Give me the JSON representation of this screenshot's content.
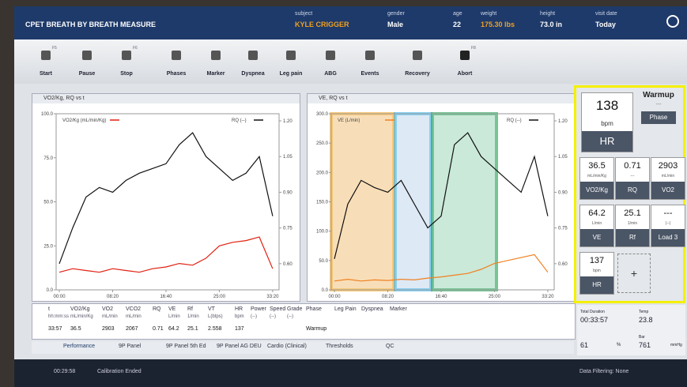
{
  "header": {
    "title": "CPET BREATH BY BREATH MEASURE",
    "subject_label": "subject",
    "subject": "KYLE CRIGGER",
    "gender_label": "gender",
    "gender": "Male",
    "age_label": "age",
    "age": 22,
    "weight_label": "weight",
    "weight": "175.30 lbs",
    "height_label": "height",
    "height": "73.0 in",
    "visit_label": "visit date",
    "visit": "Today"
  },
  "toolbar": [
    {
      "label": "Start",
      "key": "F5"
    },
    {
      "label": "Pause"
    },
    {
      "label": "Stop",
      "key": "F6"
    },
    {
      "label": "Phases"
    },
    {
      "label": "Marker"
    },
    {
      "label": "Dyspnea"
    },
    {
      "label": "Leg pain"
    },
    {
      "label": "ABG"
    },
    {
      "label": "Events"
    },
    {
      "label": "Recovery"
    },
    {
      "label": "Abort",
      "key": "F8"
    }
  ],
  "chart_data": [
    {
      "type": "line",
      "title": "VO2/Kg, RQ vs t",
      "x": [
        0,
        125,
        250,
        375,
        500,
        625,
        750,
        875,
        1000,
        1125,
        1250,
        1375,
        1500,
        1625,
        1750,
        1875,
        2000
      ],
      "xlim": [
        -30,
        2060
      ],
      "xticks": [
        {
          "value": 0,
          "label": "00:00"
        },
        {
          "value": 500,
          "label": "08:20"
        },
        {
          "value": 1000,
          "label": "16:40"
        },
        {
          "value": 1500,
          "label": "25:00"
        },
        {
          "value": 2000,
          "label": "33:20"
        }
      ],
      "ylim": [
        0,
        100
      ],
      "yticks": [
        {
          "value": 0,
          "label": "0.0"
        },
        {
          "value": 25,
          "label": "25.0"
        },
        {
          "value": 50,
          "label": "50.0"
        },
        {
          "value": 75,
          "label": "75.0"
        },
        {
          "value": 100,
          "label": "100.0"
        }
      ],
      "y2lim": [
        0.49,
        1.23
      ],
      "y2ticks": [
        {
          "value": 0.6,
          "label": "0.60"
        },
        {
          "value": 0.75,
          "label": "0.75"
        },
        {
          "value": 0.9,
          "label": "0.90"
        },
        {
          "value": 1.05,
          "label": "1.05"
        },
        {
          "value": 1.2,
          "label": "1.20"
        }
      ],
      "series": [
        {
          "name": "VO2/Kg (mL/min/Kg)",
          "color": "#e02010",
          "values": [
            10,
            12,
            11,
            10,
            12,
            11,
            10,
            12,
            13,
            15,
            14,
            18,
            25,
            27,
            28,
            30,
            12
          ]
        },
        {
          "name": "RQ (--)",
          "color": "#111111",
          "axis": "y2",
          "values": [
            0.6,
            0.75,
            0.88,
            0.92,
            0.9,
            0.95,
            0.98,
            1.0,
            1.02,
            1.1,
            1.15,
            1.05,
            1.0,
            0.95,
            0.98,
            1.05,
            0.8
          ]
        }
      ]
    },
    {
      "type": "line",
      "title": "VE, RQ vs t",
      "x": [
        0,
        125,
        250,
        375,
        500,
        625,
        750,
        875,
        1000,
        1125,
        1250,
        1375,
        1500,
        1625,
        1750,
        1875,
        2000
      ],
      "xlim": [
        -30,
        2060
      ],
      "xticks": [
        {
          "value": 0,
          "label": "00:00"
        },
        {
          "value": 500,
          "label": "08:20"
        },
        {
          "value": 1000,
          "label": "16:40"
        },
        {
          "value": 1500,
          "label": "25:00"
        },
        {
          "value": 2000,
          "label": "33:20"
        }
      ],
      "ylim": [
        0,
        300
      ],
      "yticks": [
        {
          "value": 0,
          "label": "0.0"
        },
        {
          "value": 50,
          "label": "50.0"
        },
        {
          "value": 100,
          "label": "100.0"
        },
        {
          "value": 150,
          "label": "150.0"
        },
        {
          "value": 200,
          "label": "200.0"
        },
        {
          "value": 250,
          "label": "250.0"
        },
        {
          "value": 300,
          "label": "300.0"
        }
      ],
      "y2lim": [
        0.49,
        1.23
      ],
      "y2ticks": [
        {
          "value": 0.6,
          "label": "0.60"
        },
        {
          "value": 0.75,
          "label": "0.75"
        },
        {
          "value": 0.9,
          "label": "0.90"
        },
        {
          "value": 1.05,
          "label": "1.05"
        },
        {
          "value": 1.2,
          "label": "1.20"
        }
      ],
      "series": [
        {
          "name": "VE (L/min)",
          "color": "#f08020",
          "values": [
            15,
            18,
            15,
            17,
            16,
            18,
            17,
            20,
            22,
            25,
            28,
            35,
            45,
            50,
            55,
            60,
            30
          ]
        },
        {
          "name": "RQ (--)",
          "color": "#111111",
          "axis": "y2",
          "values": [
            0.62,
            0.85,
            0.95,
            0.92,
            0.9,
            0.95,
            0.85,
            0.75,
            0.8,
            1.1,
            1.15,
            1.05,
            1.0,
            0.95,
            0.9,
            1.05,
            0.8
          ]
        }
      ]
    }
  ],
  "panel": {
    "hr": 138,
    "hr_unit": "bpm",
    "hr_label": "HR",
    "phase_value": "Warmup",
    "phase_sub": "---",
    "phase_label": "Phase",
    "tiles": [
      {
        "value": 36.5,
        "unit": "mL/min/Kg",
        "label": "VO2/Kg"
      },
      {
        "value": 0.71,
        "unit": "---",
        "label": "RQ"
      },
      {
        "value": 2903,
        "unit": "mL/min",
        "label": "VO2"
      },
      {
        "value": 64.2,
        "unit": "L/min",
        "label": "VE"
      },
      {
        "value": 25.1,
        "unit": "1/min",
        "label": "Rf"
      },
      {
        "value": "---",
        "unit": "(--)",
        "label": "Load 3"
      },
      {
        "value": 137,
        "unit": "bpm",
        "label": "HR"
      }
    ],
    "add": "+"
  },
  "table": {
    "columns": [
      {
        "name": "t",
        "unit": "hh:mm:ss"
      },
      {
        "name": "VO2/Kg",
        "unit": "mL/min/Kg"
      },
      {
        "name": "VO2",
        "unit": "mL/min"
      },
      {
        "name": "VCO2",
        "unit": "mL/min"
      },
      {
        "name": "RQ",
        "unit": null
      },
      {
        "name": "VE",
        "unit": "L/min"
      },
      {
        "name": "Rf",
        "unit": "1/min"
      },
      {
        "name": "VT",
        "unit": "L(btps)"
      },
      {
        "name": "HR",
        "unit": "bpm"
      },
      {
        "name": "Power",
        "unit": "(--)"
      },
      {
        "name": "Speed",
        "unit": "(--)"
      },
      {
        "name": "Grade",
        "unit": "(--)"
      },
      {
        "name": "Phase",
        "unit": null
      },
      {
        "name": "Leg Pain",
        "unit": null
      },
      {
        "name": "Dyspnea",
        "unit": null
      },
      {
        "name": "Marker",
        "unit": null
      }
    ],
    "row": [
      "33:57",
      36.5,
      2903,
      2067,
      0.71,
      64.2,
      25.1,
      2.558,
      137,
      null,
      null,
      null,
      "Warmup",
      null,
      null,
      null
    ]
  },
  "tabs": [
    "Performance",
    "9P Panel",
    "9P Panel 5th Ed",
    "9P Panel AG DEU",
    "Cardio (Clinical)",
    "Thresholds",
    "QC"
  ],
  "env": {
    "duration_label": "Total Duration",
    "duration": "00:33:57",
    "temp_label": "Temp",
    "temp": 23.8,
    "rh": 61,
    "rh_unit": "%",
    "bar_label": "Bar",
    "bar": 761,
    "bar_unit": "mmHg"
  },
  "status": {
    "time": "00:29:58",
    "message": "Calibration Ended",
    "filtering": "Data Filtering: None"
  }
}
